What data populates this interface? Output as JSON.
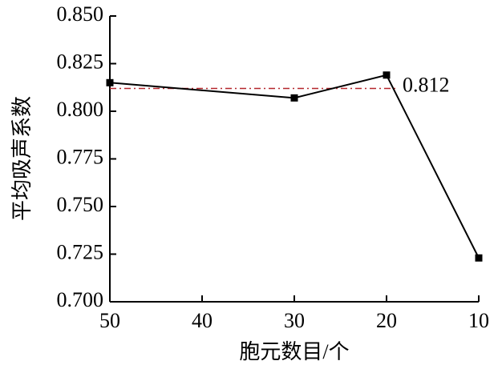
{
  "chart_data": {
    "type": "line",
    "x_label": "胞元数目/个",
    "y_label": "平均吸声系数",
    "x": [
      50,
      30,
      20,
      10
    ],
    "series": [
      {
        "color": "#000000",
        "values": [
          0.815,
          0.807,
          0.819,
          0.723
        ]
      }
    ],
    "xlim": [
      50,
      10
    ],
    "xticks": [
      50,
      40,
      30,
      20,
      10
    ],
    "ylim": [
      0.7,
      0.85
    ],
    "yticks": [
      {
        "value": 0.7,
        "label": "0.700"
      },
      {
        "value": 0.725,
        "label": "0.725"
      },
      {
        "value": 0.75,
        "label": "0.750"
      },
      {
        "value": 0.775,
        "label": "0.775"
      },
      {
        "value": 0.8,
        "label": "0.800"
      },
      {
        "value": 0.825,
        "label": "0.825"
      },
      {
        "value": 0.85,
        "label": "0.850"
      }
    ],
    "reference_line": {
      "value": 0.812,
      "color": "#b5262b"
    },
    "grid": false
  }
}
